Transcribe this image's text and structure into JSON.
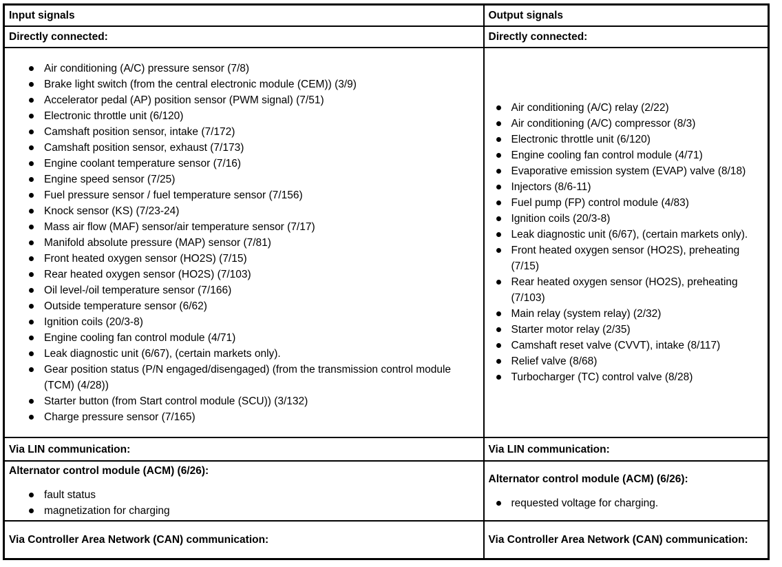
{
  "table": {
    "left": {
      "header": "Input signals",
      "directly_connected_label": "Directly connected:",
      "directly_connected_items": [
        "Air conditioning (A/C) pressure sensor (7/8)",
        "Brake light switch (from the central electronic module (CEM)) (3/9)",
        "Accelerator pedal (AP) position sensor (PWM signal) (7/51)",
        "Electronic throttle unit (6/120)",
        "Camshaft position sensor, intake (7/172)",
        "Camshaft position sensor, exhaust (7/173)",
        "Engine coolant temperature sensor (7/16)",
        "Engine speed sensor (7/25)",
        "Fuel pressure sensor / fuel temperature sensor (7/156)",
        "Knock sensor (KS) (7/23-24)",
        "Mass air flow (MAF) sensor/air temperature sensor (7/17)",
        "Manifold absolute pressure (MAP) sensor (7/81)",
        "Front heated oxygen sensor (HO2S) (7/15)",
        "Rear heated oxygen sensor (HO2S) (7/103)",
        "Oil level-/oil temperature sensor (7/166)",
        "Outside temperature sensor (6/62)",
        "Ignition coils (20/3-8)",
        "Engine cooling fan control module (4/71)",
        "Leak diagnostic unit (6/67), (certain markets only).",
        "Gear position status (P/N engaged/disengaged) (from the transmission control module (TCM) (4/28))",
        "Starter button (from Start control module (SCU)) (3/132)",
        "Charge pressure sensor (7/165)"
      ],
      "via_lin_label": "Via LIN communication:",
      "acm_heading": "Alternator control module (ACM) (6/26):",
      "acm_items": [
        "fault status",
        "magnetization for charging"
      ],
      "via_can_label": "Via Controller Area Network (CAN) communication:"
    },
    "right": {
      "header": "Output signals",
      "directly_connected_label": "Directly connected:",
      "directly_connected_items": [
        "Air conditioning (A/C) relay (2/22)",
        "Air conditioning (A/C) compressor (8/3)",
        "Electronic throttle unit (6/120)",
        "Engine cooling fan control module (4/71)",
        "Evaporative emission system (EVAP) valve (8/18)",
        "Injectors (8/6-11)",
        "Fuel pump (FP) control module (4/83)",
        "Ignition coils (20/3-8)",
        "Leak diagnostic unit (6/67), (certain markets only).",
        "Front heated oxygen sensor (HO2S), preheating (7/15)",
        "Rear heated oxygen sensor (HO2S), preheating (7/103)",
        "Main relay (system relay) (2/32)",
        "Starter motor relay (2/35)",
        "Camshaft reset valve (CVVT), intake (8/117)",
        "Relief valve (8/68)",
        "Turbocharger (TC) control valve (8/28)"
      ],
      "via_lin_label": "Via LIN communication:",
      "acm_heading": "Alternator control module (ACM) (6/26):",
      "acm_items": [
        "requested voltage for charging."
      ],
      "via_can_label": "Via Controller Area Network (CAN) communication:"
    },
    "colors": {
      "text": "#000000",
      "background": "#ffffff",
      "border": "#000000"
    }
  }
}
